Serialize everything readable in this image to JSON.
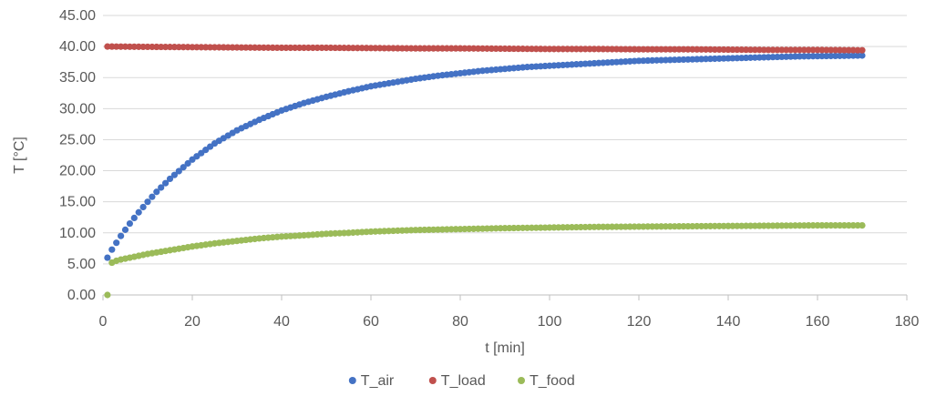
{
  "chart_data": {
    "type": "scatter",
    "title": "",
    "xlabel": "t [min]",
    "ylabel": "T [°C]",
    "xlim": [
      0,
      180
    ],
    "ylim": [
      0,
      45
    ],
    "xticks": [
      0,
      20,
      40,
      60,
      80,
      100,
      120,
      140,
      160,
      180
    ],
    "yticks": [
      0,
      5,
      10,
      15,
      20,
      25,
      30,
      35,
      40,
      45
    ],
    "xtick_labels": [
      "0",
      "20",
      "40",
      "60",
      "80",
      "100",
      "120",
      "140",
      "160",
      "180"
    ],
    "ytick_labels": [
      "0.00",
      "5.00",
      "10.00",
      "15.00",
      "20.00",
      "25.00",
      "30.00",
      "35.00",
      "40.00",
      "45.00"
    ],
    "grid": "horizontal",
    "legend_position": "bottom",
    "series": [
      {
        "name": "T_air",
        "color": "#4472c4",
        "x": [
          1,
          2,
          3,
          4,
          5,
          6,
          8,
          10,
          12,
          15,
          20,
          25,
          30,
          35,
          40,
          45,
          50,
          55,
          60,
          65,
          70,
          75,
          80,
          85,
          90,
          95,
          100,
          105,
          110,
          115,
          120,
          125,
          130,
          135,
          140,
          145,
          150,
          155,
          160,
          165,
          170
        ],
        "y": [
          6.0,
          7.3,
          8.4,
          9.5,
          10.5,
          11.5,
          13.3,
          15.0,
          16.6,
          18.7,
          21.8,
          24.4,
          26.5,
          28.2,
          29.7,
          30.9,
          31.9,
          32.8,
          33.6,
          34.2,
          34.8,
          35.3,
          35.7,
          36.1,
          36.4,
          36.7,
          36.9,
          37.1,
          37.3,
          37.5,
          37.7,
          37.8,
          37.9,
          38.0,
          38.1,
          38.2,
          38.3,
          38.4,
          38.45,
          38.5,
          38.55
        ]
      },
      {
        "name": "T_load",
        "color": "#c0504d",
        "x": [
          1,
          10,
          20,
          30,
          40,
          50,
          60,
          70,
          80,
          90,
          100,
          110,
          120,
          130,
          140,
          150,
          160,
          170
        ],
        "y": [
          40.0,
          39.95,
          39.9,
          39.85,
          39.8,
          39.8,
          39.75,
          39.7,
          39.7,
          39.65,
          39.6,
          39.6,
          39.55,
          39.55,
          39.5,
          39.45,
          39.45,
          39.4
        ]
      },
      {
        "name": "T_food",
        "color": "#9bbb59",
        "x": [
          1,
          2,
          3,
          4,
          6,
          8,
          10,
          15,
          20,
          25,
          30,
          35,
          40,
          45,
          50,
          55,
          60,
          70,
          80,
          90,
          100,
          110,
          120,
          130,
          140,
          150,
          160,
          170
        ],
        "y": [
          0.0,
          5.2,
          5.5,
          5.7,
          6.0,
          6.3,
          6.6,
          7.2,
          7.8,
          8.3,
          8.7,
          9.1,
          9.4,
          9.6,
          9.85,
          10.0,
          10.2,
          10.45,
          10.6,
          10.75,
          10.85,
          10.95,
          11.0,
          11.05,
          11.1,
          11.15,
          11.2,
          11.2
        ]
      }
    ]
  }
}
